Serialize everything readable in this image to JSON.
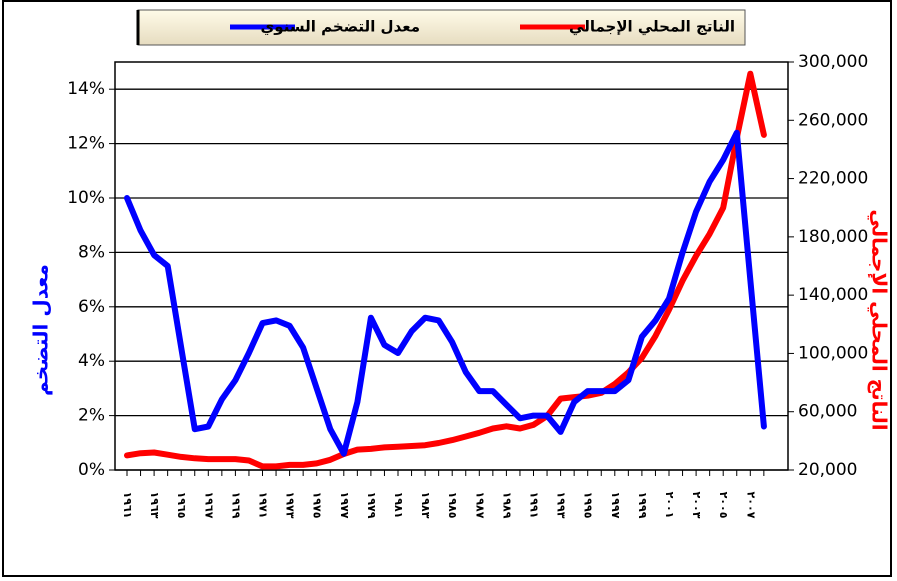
{
  "chart_data": {
    "type": "line",
    "y_label": "معدل التضخم",
    "y2_label": "الناتج المحلي الإجمالي",
    "categories": [
      "١٩٦١",
      null,
      "١٩٦٣",
      null,
      "١٩٦٥",
      null,
      "١٩٦٧",
      null,
      "١٩٦٩",
      null,
      "١٩٧١",
      null,
      "١٩٧٣",
      null,
      "١٩٧٥",
      null,
      "١٩٧٧",
      null,
      "١٩٧٩",
      null,
      "١٩٨١",
      null,
      "١٩٨٣",
      null,
      "١٩٨٥",
      null,
      "١٩٨٧",
      null,
      "١٩٨٩",
      null,
      "١٩٩١",
      null,
      "١٩٩٣",
      null,
      "١٩٩٥",
      null,
      "١٩٩٧",
      null,
      "١٩٩٩",
      null,
      "٢٠٠١",
      null,
      "٢٠٠٣",
      null,
      "٢٠٠٥",
      null,
      "٢٠٠٧",
      null
    ],
    "series": [
      {
        "name": "معدل التضخم السنوي",
        "color": "#0000ff",
        "values": [
          10.0,
          8.8,
          7.9,
          7.5,
          4.5,
          1.5,
          1.6,
          2.6,
          3.3,
          4.3,
          5.4,
          5.5,
          5.3,
          4.5,
          3.0,
          1.5,
          0.6,
          2.5,
          5.6,
          4.6,
          4.3,
          5.1,
          5.6,
          5.5,
          4.7,
          3.6,
          2.9,
          2.9,
          2.4,
          1.9,
          2.0,
          2.0,
          1.4,
          2.5,
          2.9,
          2.9,
          2.9,
          3.3,
          4.9,
          5.5,
          6.3,
          8.0,
          9.5,
          10.6,
          11.4,
          12.4,
          7.0,
          1.6
        ]
      },
      {
        "name": "الناتج المحلي الإجمالي",
        "color": "#ff0000",
        "axis": "y2",
        "values": [
          30000,
          31500,
          32000,
          30500,
          29000,
          28000,
          27500,
          27500,
          27500,
          26500,
          22500,
          22500,
          23500,
          23500,
          24500,
          27000,
          31000,
          34000,
          34500,
          35500,
          36000,
          36500,
          37000,
          38500,
          40500,
          43000,
          45500,
          48500,
          50000,
          48500,
          51000,
          57000,
          69000,
          70000,
          71000,
          73000,
          79000,
          87000,
          97000,
          112000,
          130000,
          150000,
          167000,
          182000,
          200000,
          248000,
          292000,
          250000
        ]
      }
    ],
    "ylim": [
      0,
      15
    ],
    "yticks": [
      {
        "value": 0,
        "label": "0%"
      },
      {
        "value": 2,
        "label": "2%"
      },
      {
        "value": 4,
        "label": "4%"
      },
      {
        "value": 6,
        "label": "6%"
      },
      {
        "value": 8,
        "label": "8%"
      },
      {
        "value": 10,
        "label": "10%"
      },
      {
        "value": 12,
        "label": "12%"
      },
      {
        "value": 14,
        "label": "14%"
      }
    ],
    "y2lim": [
      20000,
      300000
    ],
    "y2ticks": [
      {
        "value": 20000,
        "label": "20,000"
      },
      {
        "value": 60000,
        "label": "60,000"
      },
      {
        "value": 100000,
        "label": "100,000"
      },
      {
        "value": 140000,
        "label": "140,000"
      },
      {
        "value": 180000,
        "label": "180,000"
      },
      {
        "value": 220000,
        "label": "220,000"
      },
      {
        "value": 260000,
        "label": "260,000"
      },
      {
        "value": 300000,
        "label": "300,000"
      }
    ],
    "grid": true,
    "legend": "top"
  }
}
